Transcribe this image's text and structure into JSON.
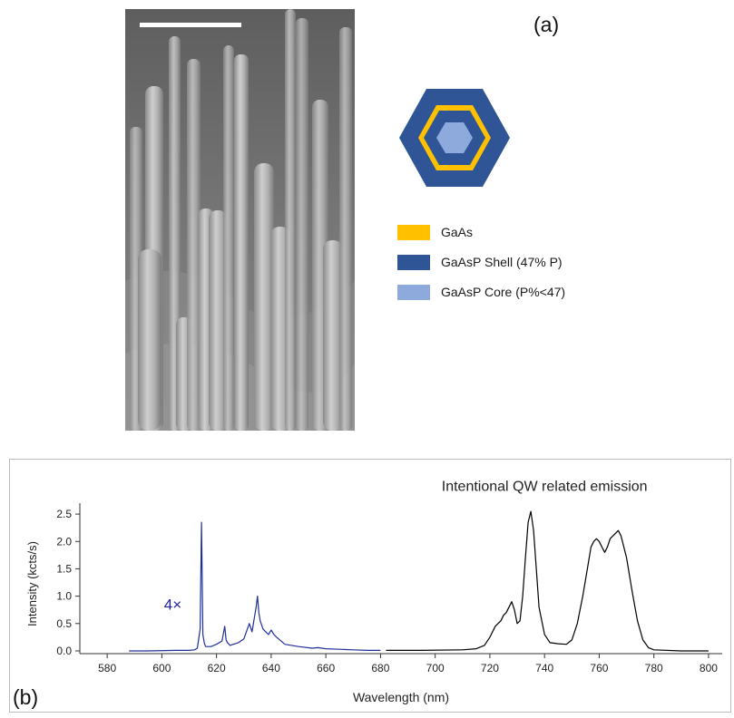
{
  "panel_a": {
    "label": "(a)",
    "legend": [
      {
        "label": "GaAs",
        "color": "#FFC000"
      },
      {
        "label": "GaAsP Shell (47% P)",
        "color": "#2F5597"
      },
      {
        "label": "GaAsP Core (P%<47)",
        "color": "#8EA9DB"
      }
    ],
    "hex_colors": {
      "outer": "#2F5597",
      "ring": "#FFC000",
      "inner": "#2F5597",
      "core": "#8EA9DB"
    }
  },
  "panel_b": {
    "label": "(b)"
  },
  "chart_data": {
    "type": "line",
    "xlabel": "Wavelength (nm)",
    "ylabel": "Intensity (kcts/s)",
    "xlim": [
      570,
      805
    ],
    "ylim": [
      -0.05,
      2.7
    ],
    "x_ticks": [
      580,
      600,
      620,
      640,
      660,
      680,
      700,
      720,
      740,
      760,
      780,
      800
    ],
    "y_ticks": [
      0.0,
      0.5,
      1.0,
      1.5,
      2.0,
      2.5
    ],
    "y_tick_labels": [
      "0.0",
      "0.5",
      "1.0",
      "1.5",
      "2.0",
      "2.5"
    ],
    "grid": false,
    "annotations": [
      {
        "text": "Intentional QW related emission",
        "x": 740,
        "y": 2.92
      },
      {
        "text": "4×",
        "x": 604,
        "y": 0.75,
        "color": "#1F1FA0"
      }
    ],
    "series": [
      {
        "color": "#1F2F9A",
        "x": [
          588,
          595,
          605,
          610,
          612,
          613,
          614,
          614.5,
          615,
          615.5,
          616,
          618,
          620,
          622,
          623,
          623.5,
          624,
          625,
          628,
          630,
          632,
          633,
          634,
          634.5,
          635,
          635.5,
          636,
          637,
          638,
          639,
          640,
          641,
          642,
          645,
          650,
          655,
          657,
          660,
          665,
          670,
          675,
          680
        ],
        "y": [
          0.0,
          0.0,
          0.01,
          0.01,
          0.02,
          0.05,
          0.4,
          2.35,
          0.3,
          0.15,
          0.08,
          0.08,
          0.12,
          0.18,
          0.45,
          0.2,
          0.15,
          0.1,
          0.15,
          0.22,
          0.5,
          0.35,
          0.65,
          0.8,
          1.0,
          0.7,
          0.55,
          0.4,
          0.35,
          0.3,
          0.38,
          0.3,
          0.25,
          0.12,
          0.08,
          0.05,
          0.06,
          0.04,
          0.03,
          0.02,
          0.01,
          0.01
        ]
      },
      {
        "color": "#000000",
        "x": [
          682,
          695,
          710,
          715,
          718,
          720,
          722,
          724,
          725,
          726,
          727,
          728,
          729,
          730,
          731,
          732,
          733,
          734,
          735,
          736,
          737,
          738,
          740,
          742,
          745,
          748,
          750,
          752,
          754,
          756,
          757,
          758,
          759,
          760,
          761,
          762,
          763,
          764,
          765,
          766,
          767,
          768,
          770,
          772,
          774,
          776,
          778,
          780,
          790,
          800
        ],
        "y": [
          0.01,
          0.01,
          0.02,
          0.04,
          0.1,
          0.25,
          0.45,
          0.55,
          0.65,
          0.7,
          0.8,
          0.9,
          0.75,
          0.5,
          0.55,
          1.0,
          1.7,
          2.35,
          2.55,
          2.2,
          1.5,
          0.8,
          0.3,
          0.15,
          0.13,
          0.12,
          0.2,
          0.5,
          1.0,
          1.6,
          1.9,
          2.0,
          2.05,
          2.0,
          1.9,
          1.8,
          1.9,
          2.05,
          2.1,
          2.15,
          2.2,
          2.1,
          1.7,
          1.1,
          0.55,
          0.2,
          0.06,
          0.02,
          0.0,
          0.0
        ]
      }
    ]
  }
}
